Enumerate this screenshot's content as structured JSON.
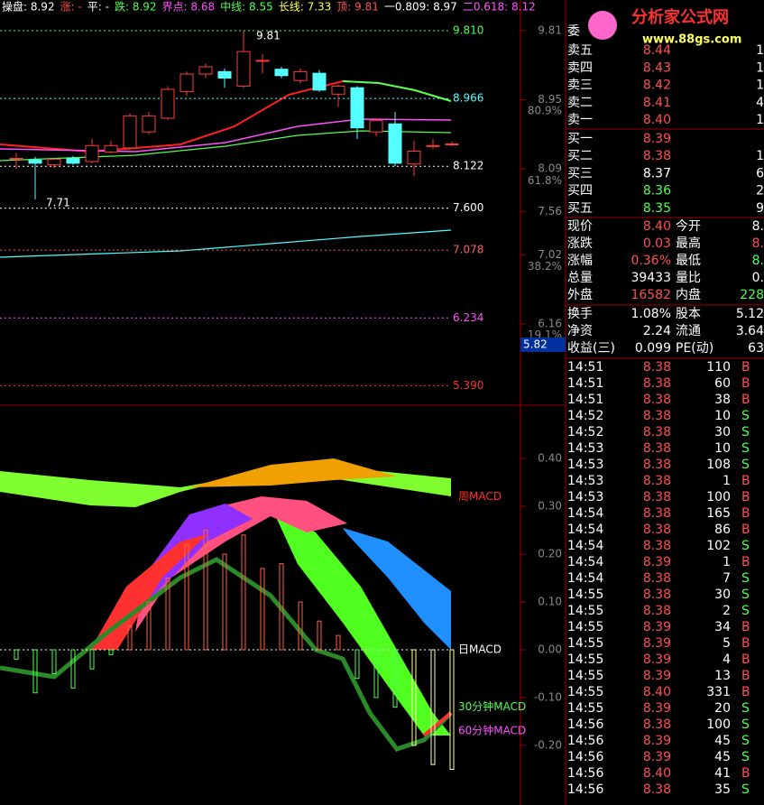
{
  "header": {
    "items": [
      {
        "text": "操盘: 8.92",
        "color": "#ffffff"
      },
      {
        "text": "涨: -",
        "color": "#ff5050"
      },
      {
        "text": "平: -",
        "color": "#ffffff"
      },
      {
        "text": "跌: 8.92",
        "color": "#50ff50"
      },
      {
        "text": "界点: 8.68",
        "color": "#ff50ff"
      },
      {
        "text": "中线: 8.55",
        "color": "#50ff50"
      },
      {
        "text": "长线: 7.33",
        "color": "#ffff50"
      },
      {
        "text": "顶: 9.81",
        "color": "#ff5050"
      },
      {
        "text": "一0.809: 8.97",
        "color": "#ffffff"
      },
      {
        "text": "二0.618: 8.12",
        "color": "#ff50ff"
      }
    ]
  },
  "logo": {
    "title": "分析家公式网",
    "url": "www.88gs.com"
  },
  "price_axis": {
    "ticks": [
      {
        "value": 9.81,
        "label": "9.81"
      },
      {
        "value": 8.95,
        "label": "8.95"
      },
      {
        "value": 8.09,
        "label": "8.09"
      },
      {
        "value": 7.56,
        "label": "7.56"
      },
      {
        "value": 7.02,
        "label": "7.02"
      },
      {
        "value": 6.16,
        "label": "6.16"
      }
    ],
    "percents": [
      {
        "value": 8.81,
        "label": "80.9%"
      },
      {
        "value": 7.94,
        "label": "61.8%"
      },
      {
        "value": 6.87,
        "label": "38.2%"
      },
      {
        "value": 6.02,
        "label": "19.1%"
      }
    ],
    "current": "5.82"
  },
  "levels": [
    {
      "value": 9.81,
      "label": "9.810",
      "color": "#50ff50"
    },
    {
      "value": 8.966,
      "label": "8.966",
      "color": "#50ffff"
    },
    {
      "value": 8.122,
      "label": "8.122",
      "color": "#ffffff"
    },
    {
      "value": 7.6,
      "label": "7.600",
      "color": "#ffffff"
    },
    {
      "value": 7.078,
      "label": "7.078",
      "color": "#ff6060"
    },
    {
      "value": 6.234,
      "label": "6.234",
      "color": "#ff50ff"
    },
    {
      "value": 5.39,
      "label": "5.390",
      "color": "#ff3030"
    }
  ],
  "candles": [
    {
      "open": 8.22,
      "high": 8.29,
      "low": 8.09,
      "close": 8.22
    },
    {
      "open": 8.2,
      "high": 8.24,
      "low": 7.71,
      "close": 8.16
    },
    {
      "open": 8.14,
      "high": 8.22,
      "low": 8.1,
      "close": 8.21
    },
    {
      "open": 8.22,
      "high": 8.25,
      "low": 8.14,
      "close": 8.16
    },
    {
      "open": 8.18,
      "high": 8.46,
      "low": 8.16,
      "close": 8.38
    },
    {
      "open": 8.3,
      "high": 8.44,
      "low": 8.28,
      "close": 8.38
    },
    {
      "open": 8.35,
      "high": 8.78,
      "low": 8.33,
      "close": 8.75
    },
    {
      "open": 8.55,
      "high": 8.8,
      "low": 8.52,
      "close": 8.75
    },
    {
      "open": 8.72,
      "high": 9.12,
      "low": 8.7,
      "close": 9.08
    },
    {
      "open": 9.05,
      "high": 9.3,
      "low": 9.0,
      "close": 9.27
    },
    {
      "open": 9.27,
      "high": 9.4,
      "low": 9.22,
      "close": 9.36
    },
    {
      "open": 9.3,
      "high": 9.34,
      "low": 9.1,
      "close": 9.22
    },
    {
      "open": 9.12,
      "high": 9.81,
      "low": 9.1,
      "close": 9.55
    },
    {
      "open": 9.44,
      "high": 9.52,
      "low": 9.28,
      "close": 9.44
    },
    {
      "open": 9.33,
      "high": 9.36,
      "low": 9.22,
      "close": 9.25
    },
    {
      "open": 9.19,
      "high": 9.34,
      "low": 9.15,
      "close": 9.3
    },
    {
      "open": 9.28,
      "high": 9.32,
      "low": 9.05,
      "close": 9.07
    },
    {
      "open": 9.02,
      "high": 9.14,
      "low": 8.86,
      "close": 9.12
    },
    {
      "open": 9.1,
      "high": 9.12,
      "low": 8.46,
      "close": 8.6
    },
    {
      "open": 8.55,
      "high": 8.72,
      "low": 8.5,
      "close": 8.69
    },
    {
      "open": 8.65,
      "high": 8.8,
      "low": 8.12,
      "close": 8.16
    },
    {
      "open": 8.15,
      "high": 8.44,
      "low": 8.0,
      "close": 8.31
    },
    {
      "open": 8.38,
      "high": 8.46,
      "low": 8.34,
      "close": 8.38
    },
    {
      "open": 8.4,
      "high": 8.43,
      "low": 8.37,
      "close": 8.4
    }
  ],
  "annotations": {
    "high": "9.81",
    "low": "7.71"
  },
  "macd": {
    "yticks": [
      {
        "value": 0.4,
        "label": "0.40"
      },
      {
        "value": 0.3,
        "label": "0.30"
      },
      {
        "value": 0.2,
        "label": "0.20"
      },
      {
        "value": 0.1,
        "label": "0.10"
      },
      {
        "value": 0,
        "label": "0.00"
      },
      {
        "value": -0.1,
        "label": "-0.10"
      },
      {
        "value": -0.2,
        "label": "-0.20"
      }
    ],
    "lines": [
      {
        "name": "周MACD",
        "value": 0.32,
        "color": "#ff3030"
      },
      {
        "name": "日MACD",
        "value": 0,
        "color": "#ffffff"
      },
      {
        "name": "30分钟MACD",
        "value": -0.12,
        "color": "#50ff50"
      },
      {
        "name": "60分钟MACD",
        "value": -0.17,
        "color": "#ff50ff"
      }
    ],
    "bars": [
      -0.02,
      -0.09,
      -0.05,
      -0.08,
      -0.04,
      -0.01,
      0.05,
      0.1,
      0.15,
      0.22,
      0.25,
      0.2,
      0.24,
      0.17,
      0.18,
      0.1,
      0.06,
      0.03,
      -0.06,
      -0.1,
      -0.12,
      -0.2,
      -0.24,
      -0.25
    ]
  },
  "quote": {
    "header": "委",
    "asks": [
      {
        "label": "卖五",
        "price": "8.44",
        "vol": "1"
      },
      {
        "label": "卖四",
        "price": "8.43",
        "vol": "1"
      },
      {
        "label": "卖三",
        "price": "8.42",
        "vol": "1"
      },
      {
        "label": "卖二",
        "price": "8.41",
        "vol": "4"
      },
      {
        "label": "卖一",
        "price": "8.40",
        "vol": "1"
      }
    ],
    "bids": [
      {
        "label": "买一",
        "price": "8.39",
        "vol": ""
      },
      {
        "label": "买二",
        "price": "8.38",
        "vol": "1"
      },
      {
        "label": "买三",
        "price": "8.37",
        "vol": "6"
      },
      {
        "label": "买四",
        "price": "8.36",
        "vol": "2"
      },
      {
        "label": "买五",
        "price": "8.35",
        "vol": "9"
      }
    ],
    "stats": [
      [
        "现价",
        "8.40",
        "今开",
        "8."
      ],
      [
        "涨跌",
        "0.03",
        "最高",
        "8."
      ],
      [
        "涨幅",
        "0.36%",
        "最低",
        "8."
      ],
      [
        "总量",
        "39433",
        "量比",
        "0."
      ],
      [
        "外盘",
        "16582",
        "内盘",
        "228"
      ]
    ],
    "stats2": [
      [
        "换手",
        "1.08%",
        "股本",
        "5.12"
      ],
      [
        "净资",
        "2.24",
        "流通",
        "3.64"
      ],
      [
        "收益(三)",
        "0.099",
        "PE(动)",
        "63"
      ]
    ]
  },
  "ticks": [
    [
      "14:51",
      "8.38",
      "110",
      "B"
    ],
    [
      "14:51",
      "8.38",
      "60",
      "B"
    ],
    [
      "14:51",
      "8.38",
      "38",
      "B"
    ],
    [
      "14:52",
      "8.38",
      "10",
      "S"
    ],
    [
      "14:52",
      "8.38",
      "30",
      "S"
    ],
    [
      "14:53",
      "8.38",
      "10",
      "S"
    ],
    [
      "14:53",
      "8.38",
      "108",
      "S"
    ],
    [
      "14:53",
      "8.38",
      "1",
      "B"
    ],
    [
      "14:53",
      "8.38",
      "100",
      "B"
    ],
    [
      "14:54",
      "8.38",
      "165",
      "B"
    ],
    [
      "14:54",
      "8.38",
      "86",
      "B"
    ],
    [
      "14:54",
      "8.38",
      "102",
      "S"
    ],
    [
      "14:54",
      "8.39",
      "1",
      "B"
    ],
    [
      "14:54",
      "8.38",
      "7",
      "S"
    ],
    [
      "14:55",
      "8.38",
      "30",
      "S"
    ],
    [
      "14:55",
      "8.38",
      "2",
      "S"
    ],
    [
      "14:55",
      "8.39",
      "34",
      "B"
    ],
    [
      "14:55",
      "8.39",
      "5",
      "B"
    ],
    [
      "14:55",
      "8.39",
      "4",
      "B"
    ],
    [
      "14:55",
      "8.39",
      "13",
      "B"
    ],
    [
      "14:55",
      "8.40",
      "331",
      "B"
    ],
    [
      "14:55",
      "8.39",
      "20",
      "S"
    ],
    [
      "14:56",
      "8.38",
      "100",
      "S"
    ],
    [
      "14:56",
      "8.39",
      "45",
      "S"
    ],
    [
      "14:56",
      "8.39",
      "45",
      "S"
    ],
    [
      "14:56",
      "8.40",
      "41",
      "B"
    ],
    [
      "14:56",
      "8.38",
      "35",
      "S"
    ]
  ]
}
